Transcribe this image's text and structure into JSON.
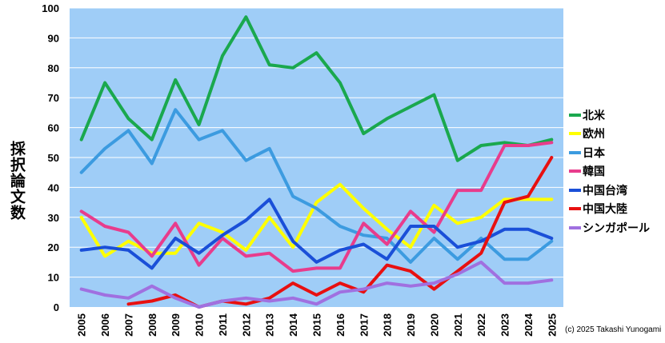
{
  "chart_data": {
    "type": "line",
    "title": "",
    "xlabel": "",
    "ylabel": "採択論文数",
    "ylim": [
      0,
      100
    ],
    "yticks": [
      "0",
      "10",
      "20",
      "30",
      "40",
      "50",
      "60",
      "70",
      "80",
      "90",
      "100"
    ],
    "categories": [
      "2005",
      "2006",
      "2007",
      "2008",
      "2009",
      "2010",
      "2011",
      "2012",
      "2013",
      "2014",
      "2015",
      "2016",
      "2017",
      "2018",
      "2019",
      "2020",
      "2021",
      "2022",
      "2023",
      "2024",
      "2025"
    ],
    "legend_position": "right",
    "series": [
      {
        "name": "北米",
        "color": "#1aa84e",
        "values": [
          56,
          75,
          63,
          56,
          76,
          61,
          84,
          97,
          81,
          80,
          85,
          75,
          58,
          63,
          67,
          71,
          49,
          54,
          55,
          54,
          56
        ]
      },
      {
        "name": "欧州",
        "color": "#ffff00",
        "values": [
          30,
          17,
          22,
          18,
          18,
          28,
          25,
          19,
          30,
          20,
          35,
          41,
          33,
          26,
          20,
          34,
          28,
          30,
          36,
          36,
          36
        ]
      },
      {
        "name": "日本",
        "color": "#3c9be0",
        "values": [
          45,
          53,
          59,
          48,
          66,
          56,
          59,
          49,
          53,
          37,
          33,
          27,
          24,
          23,
          15,
          23,
          16,
          23,
          16,
          16,
          22
        ]
      },
      {
        "name": "韓国",
        "color": "#e83c8c",
        "values": [
          32,
          27,
          25,
          17,
          28,
          14,
          23,
          17,
          18,
          12,
          13,
          13,
          28,
          21,
          32,
          25,
          39,
          39,
          54,
          54,
          55
        ]
      },
      {
        "name": "中国台湾",
        "color": "#1a4fd8",
        "values": [
          19,
          20,
          19,
          13,
          23,
          18,
          24,
          29,
          36,
          22,
          15,
          19,
          21,
          16,
          27,
          27,
          20,
          22,
          26,
          26,
          23
        ]
      },
      {
        "name": "中国大陸",
        "color": "#e81010",
        "values": [
          null,
          null,
          1,
          2,
          4,
          0,
          2,
          1,
          3,
          8,
          4,
          8,
          5,
          14,
          12,
          6,
          12,
          18,
          35,
          37,
          50
        ]
      },
      {
        "name": "シンガポール",
        "color": "#a070e0",
        "values": [
          6,
          4,
          3,
          7,
          3,
          0,
          2,
          3,
          2,
          3,
          1,
          5,
          6,
          8,
          7,
          8,
          11,
          15,
          8,
          8,
          9
        ]
      }
    ]
  },
  "copyright": "(c) 2025 Takashi Yunogami",
  "colors": {
    "plot_background": "#9fcdf7",
    "grid": "#ffffff"
  }
}
